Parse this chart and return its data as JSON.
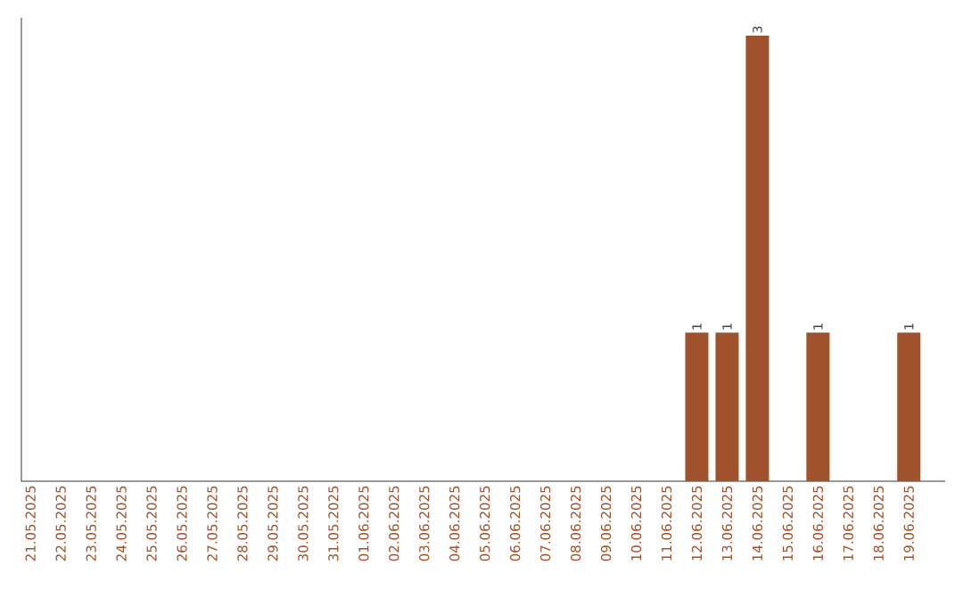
{
  "chart_data": {
    "type": "bar",
    "color": "#a0522d",
    "categories": [
      "21.05.2025",
      "22.05.2025",
      "23.05.2025",
      "24.05.2025",
      "25.05.2025",
      "26.05.2025",
      "27.05.2025",
      "28.05.2025",
      "29.05.2025",
      "30.05.2025",
      "31.05.2025",
      "01.06.2025",
      "02.06.2025",
      "03.06.2025",
      "04.06.2025",
      "05.06.2025",
      "06.06.2025",
      "07.06.2025",
      "08.06.2025",
      "09.06.2025",
      "10.06.2025",
      "11.06.2025",
      "12.06.2025",
      "13.06.2025",
      "14.06.2025",
      "15.06.2025",
      "16.06.2025",
      "17.06.2025",
      "18.06.2025",
      "19.06.2025"
    ],
    "values": [
      null,
      null,
      null,
      null,
      null,
      null,
      null,
      null,
      null,
      null,
      null,
      null,
      null,
      null,
      null,
      null,
      null,
      null,
      null,
      null,
      null,
      null,
      1,
      1,
      3,
      null,
      1,
      null,
      null,
      1
    ],
    "value_labels": [
      null,
      null,
      null,
      null,
      null,
      null,
      null,
      null,
      null,
      null,
      null,
      null,
      null,
      null,
      null,
      null,
      null,
      null,
      null,
      null,
      null,
      null,
      "1",
      "1",
      "3",
      null,
      "1",
      null,
      null,
      "1"
    ]
  }
}
